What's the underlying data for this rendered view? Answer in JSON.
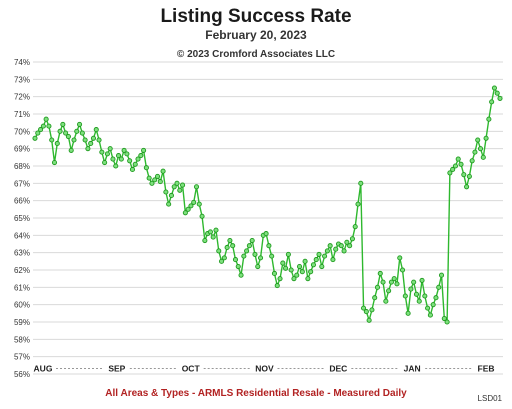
{
  "header": {
    "title": "Listing Success Rate",
    "subtitle": "February 20, 2023",
    "copyright": "© 2023 Cromford Associates LLC"
  },
  "footer": {
    "caption": "All Areas & Types - ARMLS Residential Resale - Measured Daily",
    "code": "LSD01"
  },
  "colors": {
    "line": "#2eb82e",
    "marker_fill": "#7ee07e",
    "marker_stroke": "#1f9a1f",
    "grid": "#d9d9d9",
    "footer_text": "#b22222"
  },
  "chart_data": {
    "type": "line",
    "title": "Listing Success Rate",
    "subtitle": "February 20, 2023",
    "ylim": [
      56,
      74
    ],
    "y_ticks": [
      "56%",
      "57%",
      "58%",
      "59%",
      "60%",
      "61%",
      "62%",
      "63%",
      "64%",
      "65%",
      "66%",
      "67%",
      "68%",
      "69%",
      "70%",
      "71%",
      "72%",
      "73%",
      "74%"
    ],
    "x_month_labels": [
      "AUG",
      "SEP",
      "OCT",
      "NOV",
      "DEC",
      "JAN",
      "FEB"
    ],
    "grid": "horizontal",
    "series": [
      {
        "values": [
          69.6,
          69.9,
          70.1,
          70.3,
          70.7,
          70.3,
          69.5,
          68.2,
          69.3,
          70.0,
          70.4,
          69.9,
          69.7,
          68.9,
          69.5,
          70.0,
          70.4,
          69.9,
          69.5,
          69.0,
          69.3,
          69.6,
          70.1,
          69.5,
          68.8,
          68.2,
          68.7,
          69.0,
          68.4,
          68.0,
          68.6,
          68.4,
          68.9,
          68.7,
          68.3,
          67.8,
          68.1,
          68.4,
          68.6,
          68.9,
          67.9,
          67.3,
          67.0,
          67.2,
          67.4,
          67.1,
          67.7,
          66.5,
          65.8,
          66.3,
          66.8,
          67.0,
          66.6,
          66.9,
          65.3,
          65.5,
          65.7,
          65.9,
          66.8,
          65.8,
          65.1,
          63.7,
          64.1,
          64.2,
          63.9,
          64.3,
          63.1,
          62.5,
          62.7,
          63.3,
          63.7,
          63.4,
          62.6,
          62.2,
          61.7,
          62.8,
          63.1,
          63.4,
          63.7,
          62.9,
          62.2,
          62.7,
          64.0,
          64.1,
          63.4,
          62.8,
          61.8,
          61.1,
          61.5,
          62.4,
          62.1,
          62.9,
          62.0,
          61.5,
          61.7,
          62.2,
          61.9,
          62.5,
          61.5,
          61.9,
          62.3,
          62.6,
          62.9,
          62.2,
          62.8,
          63.1,
          63.4,
          62.6,
          63.2,
          63.5,
          63.4,
          63.1,
          63.6,
          63.4,
          63.8,
          64.5,
          65.8,
          67.0,
          59.8,
          59.6,
          59.1,
          59.7,
          60.4,
          61.0,
          61.8,
          61.3,
          60.2,
          60.8,
          61.3,
          61.5,
          61.2,
          62.7,
          62.0,
          60.5,
          59.5,
          60.9,
          61.3,
          60.6,
          60.2,
          61.4,
          60.5,
          59.8,
          59.4,
          60.0,
          60.4,
          61.0,
          61.7,
          59.2,
          59.0,
          67.6,
          67.8,
          68.0,
          68.4,
          68.1,
          67.5,
          66.8,
          67.4,
          68.3,
          68.8,
          69.5,
          69.0,
          68.5,
          69.6,
          70.7,
          71.7,
          72.5,
          72.2,
          71.9
        ]
      }
    ]
  }
}
